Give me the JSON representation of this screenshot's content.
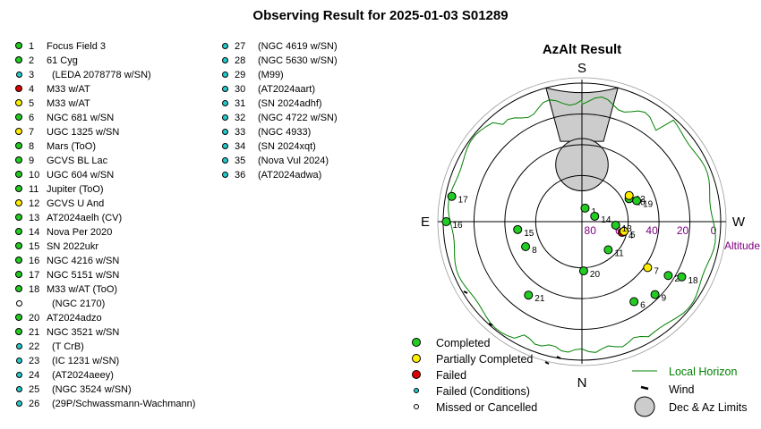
{
  "title": "Observing Result for 2025-01-03 S01289",
  "colors": {
    "completed": "#22cc22",
    "partial": "#ffee00",
    "failed": "#dd0000",
    "failed_conditions": "#22cccc",
    "missed": "#ffffff",
    "horizon": "#008000",
    "limits": "#cccccc"
  },
  "targets": [
    {
      "num": "1",
      "name": "Focus Field 3",
      "status": "completed"
    },
    {
      "num": "2",
      "name": "61 Cyg",
      "status": "completed"
    },
    {
      "num": "3",
      "name": "(LEDA 2078778 w/SN)",
      "status": "failed_conditions"
    },
    {
      "num": "4",
      "name": "M33 w/AT",
      "status": "failed"
    },
    {
      "num": "5",
      "name": "M33 w/AT",
      "status": "partial"
    },
    {
      "num": "6",
      "name": "NGC 681 w/SN",
      "status": "completed"
    },
    {
      "num": "7",
      "name": "UGC 1325 w/SN",
      "status": "partial"
    },
    {
      "num": "8",
      "name": "Mars (ToO)",
      "status": "completed"
    },
    {
      "num": "9",
      "name": "GCVS BL Lac",
      "status": "completed"
    },
    {
      "num": "10",
      "name": "UGC 604 w/SN",
      "status": "completed"
    },
    {
      "num": "11",
      "name": "Jupiter (ToO)",
      "status": "completed"
    },
    {
      "num": "12",
      "name": "GCVS U And",
      "status": "partial"
    },
    {
      "num": "13",
      "name": "AT2024aelh (CV)",
      "status": "completed"
    },
    {
      "num": "14",
      "name": "Nova Per 2020",
      "status": "completed"
    },
    {
      "num": "15",
      "name": "SN 2022ukr",
      "status": "completed"
    },
    {
      "num": "16",
      "name": "NGC 4216 w/SN",
      "status": "completed"
    },
    {
      "num": "17",
      "name": "NGC 5151 w/SN",
      "status": "completed"
    },
    {
      "num": "18",
      "name": "M33 w/AT (ToO)",
      "status": "completed"
    },
    {
      "num": "",
      "name": "(NGC 2170)",
      "status": "missed"
    },
    {
      "num": "20",
      "name": "AT2024adzo",
      "status": "completed"
    },
    {
      "num": "21",
      "name": "NGC 3521 w/SN",
      "status": "completed"
    },
    {
      "num": "22",
      "name": "(T CrB)",
      "status": "failed_conditions"
    },
    {
      "num": "23",
      "name": "(IC 1231 w/SN)",
      "status": "failed_conditions"
    },
    {
      "num": "24",
      "name": "(AT2024aeey)",
      "status": "failed_conditions"
    },
    {
      "num": "25",
      "name": "(NGC 3524 w/SN)",
      "status": "failed_conditions"
    },
    {
      "num": "26",
      "name": "(29P/Schwassmann-Wachmann)",
      "status": "failed_conditions"
    },
    {
      "num": "27",
      "name": "(NGC 4619 w/SN)",
      "status": "failed_conditions"
    },
    {
      "num": "28",
      "name": "(NGC 5630 w/SN)",
      "status": "failed_conditions"
    },
    {
      "num": "29",
      "name": "(M99)",
      "status": "failed_conditions"
    },
    {
      "num": "30",
      "name": "(AT2024aart)",
      "status": "failed_conditions"
    },
    {
      "num": "31",
      "name": "(SN 2024adhf)",
      "status": "failed_conditions"
    },
    {
      "num": "32",
      "name": "(NGC 4722 w/SN)",
      "status": "failed_conditions"
    },
    {
      "num": "33",
      "name": "(NGC 4933)",
      "status": "failed_conditions"
    },
    {
      "num": "34",
      "name": "(SN 2024xqt)",
      "status": "failed_conditions"
    },
    {
      "num": "35",
      "name": "(Nova Vul 2024)",
      "status": "failed_conditions"
    },
    {
      "num": "36",
      "name": "(AT2024adwa)",
      "status": "failed_conditions"
    }
  ],
  "chart_data": {
    "type": "scatter",
    "projection": "polar-azimuth-altitude",
    "title": "AzAlt Result",
    "directions": {
      "top": "S",
      "bottom": "N",
      "left": "E",
      "right": "W"
    },
    "radial_axis_label": "Altitude",
    "altitude_ticks": [
      0,
      20,
      40,
      60,
      80
    ],
    "grid": true,
    "points": [
      {
        "label": "1",
        "az": 347,
        "alt": 81,
        "status": "completed"
      },
      {
        "label": "2",
        "az": 238,
        "alt": 24,
        "status": "completed"
      },
      {
        "label": "4",
        "az": 255,
        "alt": 63,
        "status": "failed"
      },
      {
        "label": "5",
        "az": 257,
        "alt": 62,
        "status": "partial"
      },
      {
        "label": "6",
        "az": 213,
        "alt": 28,
        "status": "completed"
      },
      {
        "label": "7",
        "az": 235,
        "alt": 38,
        "status": "partial"
      },
      {
        "label": "8",
        "az": 114,
        "alt": 50,
        "status": "completed"
      },
      {
        "label": "9",
        "az": 225,
        "alt": 23,
        "status": "completed"
      },
      {
        "label": "10",
        "az": 296,
        "alt": 56,
        "status": "completed"
      },
      {
        "label": "11",
        "az": 223,
        "alt": 65,
        "status": "completed"
      },
      {
        "label": "12",
        "az": 299,
        "alt": 55,
        "status": "partial"
      },
      {
        "label": "13",
        "az": 264,
        "alt": 68,
        "status": "completed"
      },
      {
        "label": "14",
        "az": 293,
        "alt": 81,
        "status": "completed"
      },
      {
        "label": "15",
        "az": 97,
        "alt": 48,
        "status": "completed"
      },
      {
        "label": "16",
        "az": 90,
        "alt": 2,
        "status": "completed"
      },
      {
        "label": "17",
        "az": 79,
        "alt": 4,
        "status": "completed"
      },
      {
        "label": "18",
        "az": 241,
        "alt": 16,
        "status": "completed"
      },
      {
        "label": "19",
        "az": 291,
        "alt": 52,
        "status": "completed"
      },
      {
        "label": "20",
        "az": 182,
        "alt": 58,
        "status": "completed"
      },
      {
        "label": "21",
        "az": 144,
        "alt": 31,
        "status": "completed"
      }
    ],
    "limits": {
      "dec_circle": {
        "az": 0,
        "alt": 53,
        "radius_deg": 17
      },
      "az_wedge": {
        "from": 345,
        "to": 15,
        "alt_from": 36
      }
    },
    "legend": [
      {
        "label": "Completed",
        "status": "completed"
      },
      {
        "label": "Partially Completed",
        "status": "partial"
      },
      {
        "label": "Failed",
        "status": "failed"
      },
      {
        "label": "Failed (Conditions)",
        "status": "failed_conditions"
      },
      {
        "label": "Missed or Cancelled",
        "status": "missed"
      },
      {
        "label": "Local Horizon",
        "kind": "line"
      },
      {
        "label": "Wind",
        "kind": "wind"
      },
      {
        "label": "Dec & Az Limits",
        "kind": "limits"
      }
    ],
    "legend_position": "bottom"
  }
}
